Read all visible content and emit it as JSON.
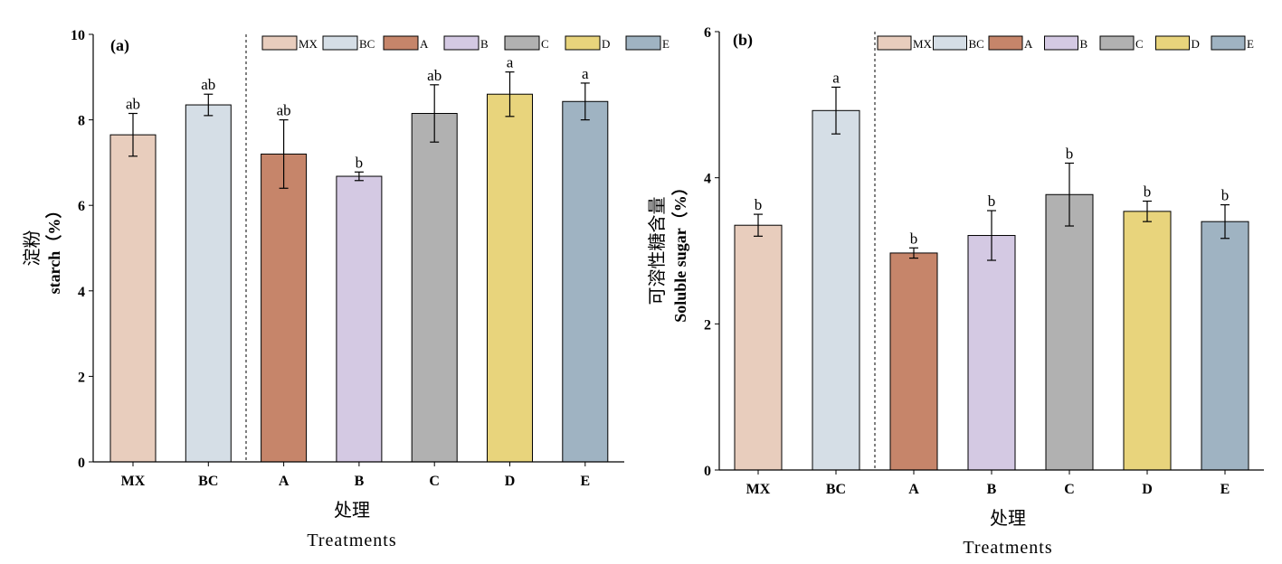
{
  "chart_data": [
    {
      "type": "bar",
      "panel_label": "(a)",
      "categories": [
        "MX",
        "BC",
        "A",
        "B",
        "C",
        "D",
        "E"
      ],
      "values": [
        7.65,
        8.35,
        7.2,
        6.68,
        8.15,
        8.6,
        8.43
      ],
      "errors": [
        0.5,
        0.25,
        0.8,
        0.1,
        0.67,
        0.52,
        0.43
      ],
      "letters": [
        "ab",
        "ab",
        "ab",
        "b",
        "ab",
        "a",
        "a"
      ],
      "colors": [
        "#e8cdbd",
        "#d5dee6",
        "#c6856a",
        "#d4c9e3",
        "#b1b1b1",
        "#e8d47c",
        "#9fb3c2"
      ],
      "ylabel_cn": "淀粉",
      "ylabel_en": "starch（%）",
      "xlabel_cn": "处理",
      "xlabel_en": "Treatments",
      "ylim": [
        0,
        10
      ],
      "yticks": [
        "0",
        "2",
        "4",
        "6",
        "8",
        "10"
      ],
      "legend": [
        "MX",
        "BC",
        "A",
        "B",
        "C",
        "D",
        "E"
      ],
      "legend_position": "top-right",
      "divider_after": "BC"
    },
    {
      "type": "bar",
      "panel_label": "(b)",
      "categories": [
        "MX",
        "BC",
        "A",
        "B",
        "C",
        "D",
        "E"
      ],
      "values": [
        3.35,
        4.92,
        2.97,
        3.21,
        3.77,
        3.54,
        3.4
      ],
      "errors": [
        0.15,
        0.32,
        0.07,
        0.34,
        0.43,
        0.14,
        0.23
      ],
      "letters": [
        "b",
        "a",
        "b",
        "b",
        "b",
        "b",
        "b"
      ],
      "colors": [
        "#e8cdbd",
        "#d5dee6",
        "#c6856a",
        "#d4c9e3",
        "#b1b1b1",
        "#e8d47c",
        "#9fb3c2"
      ],
      "ylabel_cn": "可溶性糖含量",
      "ylabel_en": "Soluble sugar（%）",
      "xlabel_cn": "处理",
      "xlabel_en": "Treatments",
      "ylim": [
        0,
        6
      ],
      "yticks": [
        "0",
        "2",
        "4",
        "6"
      ],
      "legend": [
        "MX",
        "BC",
        "A",
        "B",
        "C",
        "D",
        "E"
      ],
      "legend_position": "top-right",
      "divider_after": "BC"
    }
  ]
}
